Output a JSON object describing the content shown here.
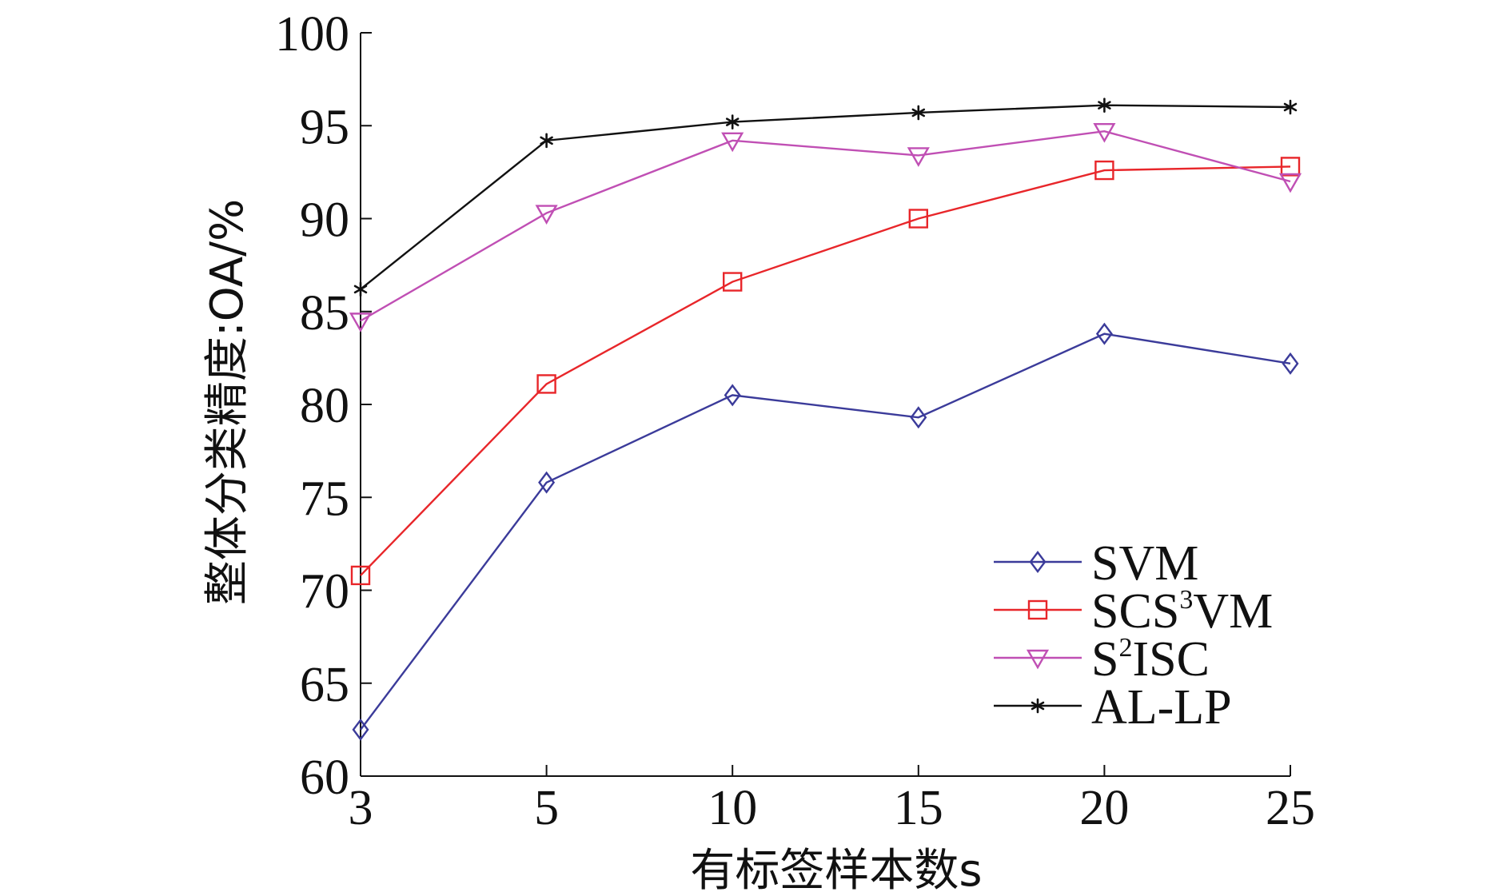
{
  "chart_data": {
    "type": "line",
    "title": "",
    "xlabel": "有标签样本数s",
    "ylabel": "整体分类精度:OA/%",
    "categories": [
      "3",
      "5",
      "10",
      "15",
      "20",
      "25"
    ],
    "ylim": [
      60,
      100
    ],
    "yticks": [
      60,
      65,
      70,
      75,
      80,
      85,
      90,
      95,
      100
    ],
    "grid": false,
    "legend_position": "bottom-right",
    "series": [
      {
        "name": "SVM",
        "label_main": "SVM",
        "label_sup": "",
        "label_tail": "",
        "color": "#3b3b9a",
        "marker": "diamond",
        "values": [
          62.5,
          75.8,
          80.5,
          79.3,
          83.8,
          82.2
        ]
      },
      {
        "name": "SCS³VM",
        "label_main": "SCS",
        "label_sup": "3",
        "label_tail": "VM",
        "color": "#e8262a",
        "marker": "square",
        "values": [
          70.8,
          81.1,
          86.6,
          90.0,
          92.6,
          92.8
        ]
      },
      {
        "name": "S²ISC",
        "label_main": "S",
        "label_sup": "2",
        "label_tail": "ISC",
        "color": "#c04fb4",
        "marker": "triangle-down",
        "values": [
          84.5,
          90.3,
          94.2,
          93.4,
          94.7,
          92.0
        ]
      },
      {
        "name": "AL-LP",
        "label_main": "AL-LP",
        "label_sup": "",
        "label_tail": "",
        "color": "#111111",
        "marker": "asterisk",
        "values": [
          86.2,
          94.2,
          95.2,
          95.7,
          96.1,
          96.0
        ]
      }
    ]
  }
}
